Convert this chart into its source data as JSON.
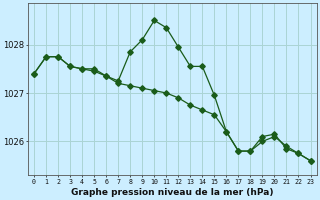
{
  "title": "Graphe pression niveau de la mer (hPa)",
  "bg_color": "#cceeff",
  "grid_color": "#aad4d4",
  "line_color": "#1a5c1a",
  "x_labels": [
    "0",
    "1",
    "2",
    "3",
    "4",
    "5",
    "6",
    "7",
    "8",
    "9",
    "10",
    "11",
    "12",
    "13",
    "14",
    "15",
    "16",
    "17",
    "18",
    "19",
    "20",
    "21",
    "22",
    "23"
  ],
  "x_values": [
    0,
    1,
    2,
    3,
    4,
    5,
    6,
    7,
    8,
    9,
    10,
    11,
    12,
    13,
    14,
    15,
    16,
    17,
    18,
    19,
    20,
    21,
    22,
    23
  ],
  "series1": [
    1027.4,
    1027.75,
    1027.75,
    1027.55,
    1027.5,
    1027.5,
    1027.35,
    1027.25,
    1027.85,
    1028.1,
    1028.5,
    1028.35,
    1027.95,
    1027.55,
    1027.55,
    1026.95,
    1026.2,
    1025.8,
    1025.8,
    1026.1,
    1026.15,
    1025.85,
    1025.75,
    1025.6
  ],
  "series2": [
    1027.4,
    1027.75,
    1027.75,
    1027.55,
    1027.5,
    1027.45,
    1027.35,
    1027.2,
    1027.15,
    1027.1,
    1027.05,
    1027.0,
    1026.9,
    1026.75,
    1026.65,
    1026.55,
    1026.2,
    1025.8,
    1025.8,
    1026.0,
    1026.1,
    1025.9,
    1025.75,
    1025.6
  ],
  "ylim": [
    1025.3,
    1028.85
  ],
  "yticks": [
    1026,
    1027,
    1028
  ],
  "marker_size": 2.8,
  "linewidth": 0.9
}
